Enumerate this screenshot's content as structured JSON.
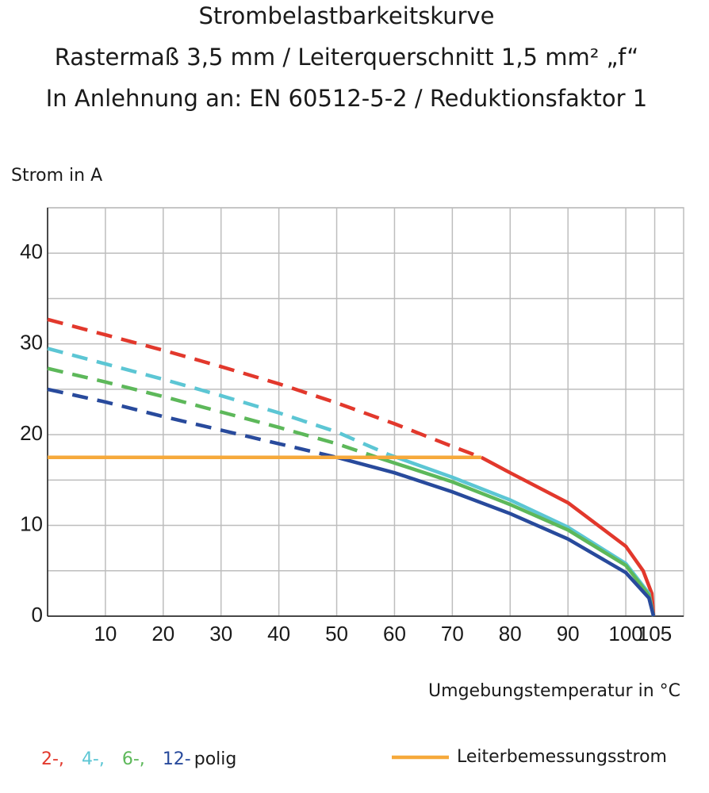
{
  "chart_data": {
    "type": "line",
    "title": "Strombelastbarkeitskurve",
    "subtitle": [
      "Rastermaß 3,5 mm / Leiterquerschnitt 1,5 mm² „f“",
      "In Anlehnung an: EN 60512-5-2 / Reduktionsfaktor 1"
    ],
    "y_label": "Strom in A",
    "x_label": "Umgebungstemperatur in °C",
    "xlim": [
      0,
      110
    ],
    "ylim": [
      0,
      45
    ],
    "xticks": [
      10,
      20,
      30,
      40,
      50,
      60,
      70,
      80,
      90,
      100,
      105
    ],
    "yticks": [
      0,
      10,
      20,
      30,
      40
    ],
    "y_minor_grid": [
      5,
      15,
      25,
      35,
      45
    ],
    "grid": true,
    "legend_suffix": "polig",
    "series": [
      {
        "name": "2-,",
        "color": "#e2382c",
        "dashed_below_x": 75,
        "x": [
          0,
          10,
          20,
          30,
          40,
          50,
          60,
          70,
          75,
          80,
          90,
          100,
          103,
          104.5,
          104.8
        ],
        "values": [
          32.7,
          31,
          29.3,
          27.5,
          25.6,
          23.5,
          21.2,
          18.7,
          17.5,
          15.8,
          12.5,
          7.7,
          5,
          2.5,
          0
        ]
      },
      {
        "name": "4-,",
        "color": "#5cc6d4",
        "dashed_below_x": 59,
        "x": [
          0,
          10,
          20,
          30,
          40,
          50,
          59,
          70,
          80,
          90,
          100,
          104,
          104.8
        ],
        "values": [
          29.5,
          27.8,
          26.1,
          24.3,
          22.4,
          20.3,
          17.8,
          15.3,
          12.8,
          9.8,
          5.8,
          2.5,
          0
        ]
      },
      {
        "name": "6-,",
        "color": "#5db85a",
        "dashed_below_x": 57,
        "x": [
          0,
          10,
          20,
          30,
          40,
          50,
          57,
          70,
          80,
          90,
          100,
          104,
          104.8
        ],
        "values": [
          27.3,
          25.8,
          24.2,
          22.5,
          20.8,
          19,
          17.5,
          14.8,
          12.3,
          9.5,
          5.6,
          2.3,
          0
        ]
      },
      {
        "name": "12-",
        "color": "#284a9c",
        "dashed_below_x": 50,
        "x": [
          0,
          10,
          20,
          30,
          40,
          50,
          60,
          70,
          80,
          90,
          100,
          104,
          104.8
        ],
        "values": [
          25,
          23.6,
          22,
          20.5,
          19,
          17.5,
          15.8,
          13.7,
          11.3,
          8.5,
          4.8,
          2,
          0
        ]
      },
      {
        "name": "Leiterbemessungsstrom",
        "color": "#f6a93b",
        "x": [
          0,
          75
        ],
        "values": [
          17.5,
          17.5
        ]
      }
    ]
  }
}
